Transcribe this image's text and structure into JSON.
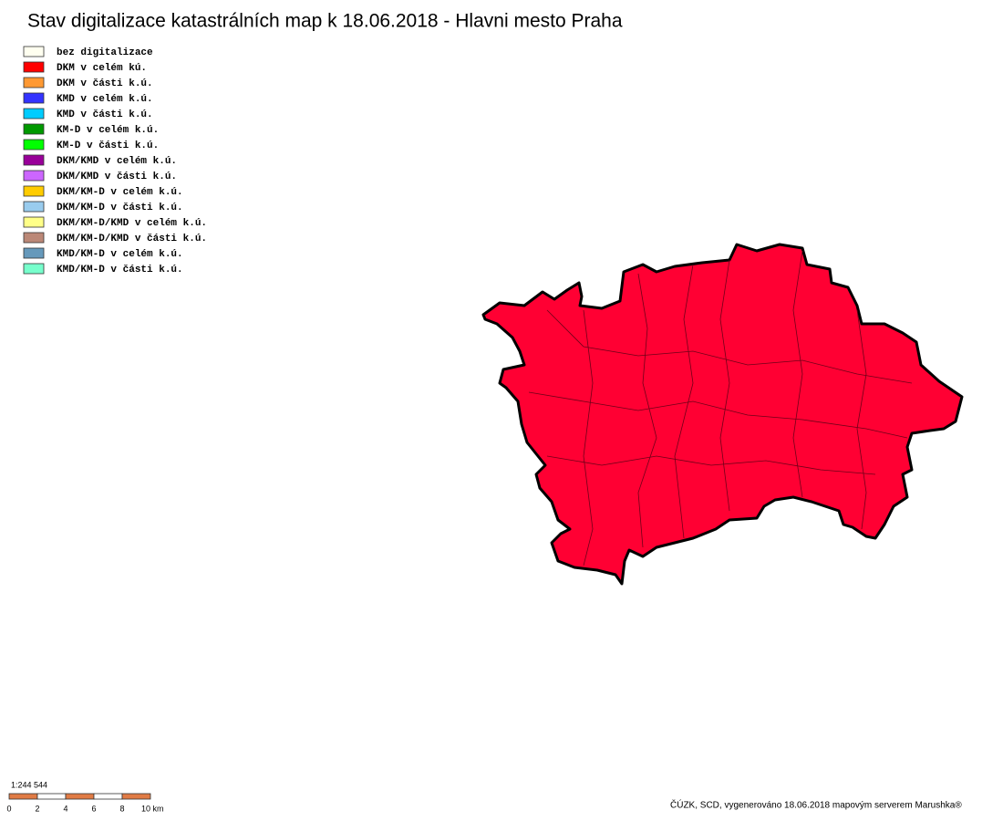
{
  "title": "Stav digitalizace katastrálních map k 18.06.2018 - Hlavni mesto Praha",
  "legend": [
    {
      "label": "bez digitalizace",
      "color": "#fffff0"
    },
    {
      "label": "DKM v celém kú.",
      "color": "#ff0000"
    },
    {
      "label": "DKM v části k.ú.",
      "color": "#ff9933"
    },
    {
      "label": "KMD v celém k.ú.",
      "color": "#3333ff"
    },
    {
      "label": "KMD v části k.ú.",
      "color": "#00ccff"
    },
    {
      "label": "KM-D v celém k.ú.",
      "color": "#009900"
    },
    {
      "label": "KM-D v části k.ú.",
      "color": "#00ff00"
    },
    {
      "label": "DKM/KMD v celém k.ú.",
      "color": "#990099"
    },
    {
      "label": "DKM/KMD v části k.ú.",
      "color": "#cc66ff"
    },
    {
      "label": "DKM/KM-D v celém k.ú.",
      "color": "#ffcc00"
    },
    {
      "label": "DKM/KM-D v části k.ú.",
      "color": "#99ccee"
    },
    {
      "label": "DKM/KM-D/KMD v celém k.ú.",
      "color": "#ffff88"
    },
    {
      "label": "DKM/KM-D/KMD v části k.ú.",
      "color": "#bb8877"
    },
    {
      "label": "KMD/KM-D v celém k.ú.",
      "color": "#6699bb"
    },
    {
      "label": "KMD/KM-D v části k.ú.",
      "color": "#77ffcc"
    }
  ],
  "scale": {
    "ratio": "1:244 544",
    "labels": [
      "0",
      "2",
      "4",
      "6",
      "8",
      "10 km"
    ]
  },
  "credit": "ČÚZK, SCD, vygenerováno 18.06.2018 mapovým serverem Marushka®"
}
